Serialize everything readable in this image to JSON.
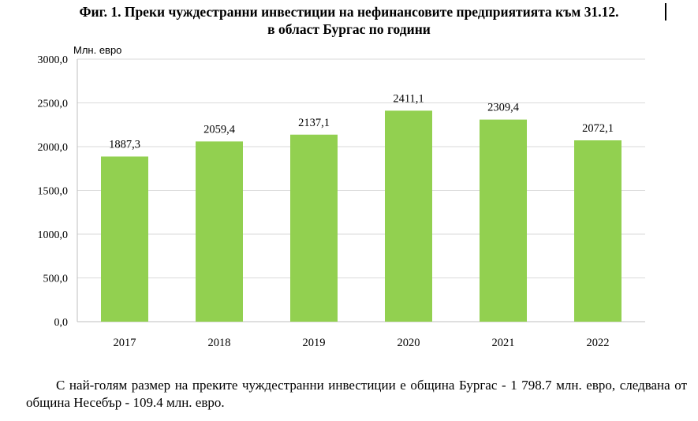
{
  "page": {
    "title_line1": "Фиг. 1. Преки чуждестранни инвестиции на нефинансовите предприятията към 31.12.",
    "title_line2": "в област Бургас по години",
    "paragraph": "С най-голям размер на преките чуждестранни инвестиции е община Бургас - 1 798.7 млн. евро, следвана от община Несебър - 109.4 млн. евро."
  },
  "chart_data": {
    "type": "bar",
    "title": "Фиг. 1. Преки чуждестранни инвестиции на нефинансовите предприятията към 31.12. в област Бургас по години",
    "ylabel": "Млн. евро",
    "xlabel": "",
    "categories": [
      "2017",
      "2018",
      "2019",
      "2020",
      "2021",
      "2022"
    ],
    "values": [
      1887.3,
      2059.4,
      2137.1,
      2411.1,
      2309.4,
      2072.1
    ],
    "value_labels": [
      "1887,3",
      "2059,4",
      "2137,1",
      "2411,1",
      "2309,4",
      "2072,1"
    ],
    "ylim": [
      0,
      3000
    ],
    "yticks": [
      0,
      500,
      1000,
      1500,
      2000,
      2500,
      3000
    ],
    "ytick_labels": [
      "0,0",
      "500,0",
      "1000,0",
      "1500,0",
      "2000,0",
      "2500,0",
      "3000,0"
    ],
    "grid": true,
    "legend": "none",
    "colors": {
      "bar": "#92d050",
      "grid": "#d9d9d9",
      "axis": "#bfbfbf"
    }
  }
}
